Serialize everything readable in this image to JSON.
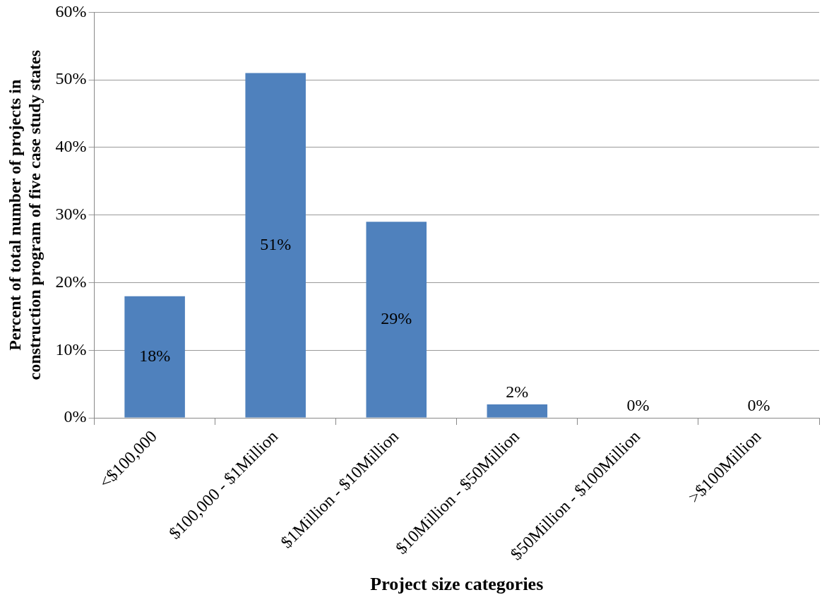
{
  "chart_data": {
    "type": "bar",
    "categories": [
      "<$100,000",
      "$100,000 - $1Million",
      "$1Million - $10Million",
      "$10Million - $50Million",
      "$50Million - $100Million",
      ">$100Million"
    ],
    "values": [
      18,
      51,
      29,
      2,
      0,
      0
    ],
    "color": "#4f81bd",
    "xlabel": "Project size categories",
    "ylabel": "Percent of total number of projects in construction program of five case study states",
    "ylim": [
      0,
      60
    ],
    "yticks": [
      {
        "value": 0,
        "label": "0%"
      },
      {
        "value": 10,
        "label": "10%"
      },
      {
        "value": 20,
        "label": "20%"
      },
      {
        "value": 30,
        "label": "30%"
      },
      {
        "value": 40,
        "label": "40%"
      },
      {
        "value": 50,
        "label": "50%"
      },
      {
        "value": 60,
        "label": "60%"
      }
    ],
    "value_labels": [
      "18%",
      "51%",
      "29%",
      "2%",
      "0%",
      "0%"
    ],
    "grid": "y"
  }
}
